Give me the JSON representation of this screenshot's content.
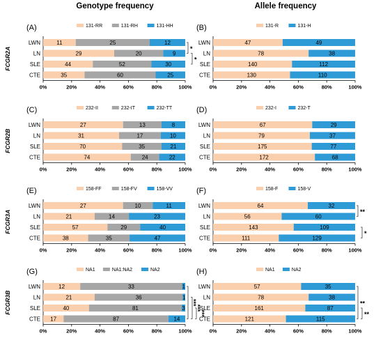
{
  "headers": {
    "genotype": "Genotype frequency",
    "allele": "Allele frequency"
  },
  "genes": [
    "FCGR2A",
    "FCGR2B",
    "FCGR3A",
    "FCGR3B"
  ],
  "colors": {
    "c1": "#f9cfae",
    "c2": "#a6a6a6",
    "c3": "#2e9ad6",
    "sig_line": "#404040",
    "axis": "#000000"
  },
  "chart_data": [
    {
      "type": "bar",
      "panel": "(A)",
      "orientation": "horizontal",
      "stacked": "percent",
      "categories": [
        "LWN",
        "LN",
        "SLE",
        "CTE"
      ],
      "series": [
        {
          "name": "131-RR",
          "values": [
            11,
            29,
            44,
            35
          ]
        },
        {
          "name": "131-RH",
          "values": [
            25,
            20,
            52,
            60
          ]
        },
        {
          "name": "131-HH",
          "values": [
            12,
            9,
            30,
            25
          ]
        }
      ],
      "xticks": [
        "0%",
        "20%",
        "40%",
        "60%",
        "80%",
        "100%"
      ],
      "significance": [
        {
          "rows": [
            0,
            1
          ],
          "label": "*"
        },
        {
          "rows": [
            1,
            2
          ],
          "label": "*"
        }
      ]
    },
    {
      "type": "bar",
      "panel": "(B)",
      "orientation": "horizontal",
      "stacked": "percent",
      "categories": [
        "LWN",
        "LN",
        "SLE",
        "CTE"
      ],
      "series": [
        {
          "name": "131-R",
          "values": [
            47,
            78,
            140,
            130
          ]
        },
        {
          "name": "131-H",
          "values": [
            49,
            38,
            112,
            110
          ]
        }
      ],
      "xticks": [
        "0%",
        "20%",
        "40%",
        "60%",
        "80%",
        "100%"
      ],
      "significance": []
    },
    {
      "type": "bar",
      "panel": "(C)",
      "orientation": "horizontal",
      "stacked": "percent",
      "categories": [
        "LWN",
        "LN",
        "SLE",
        "CTE"
      ],
      "series": [
        {
          "name": "232-II",
          "values": [
            27,
            31,
            70,
            74
          ]
        },
        {
          "name": "232-IT",
          "values": [
            13,
            17,
            35,
            24
          ]
        },
        {
          "name": "232-TT",
          "values": [
            8,
            10,
            21,
            22
          ]
        }
      ],
      "xticks": [
        "0%",
        "20%",
        "40%",
        "60%",
        "80%",
        "100%"
      ],
      "significance": []
    },
    {
      "type": "bar",
      "panel": "(D)",
      "orientation": "horizontal",
      "stacked": "percent",
      "categories": [
        "LWN",
        "LN",
        "SLE",
        "CTE"
      ],
      "series": [
        {
          "name": "232-I",
          "values": [
            67,
            79,
            175,
            172
          ]
        },
        {
          "name": "232-T",
          "values": [
            29,
            37,
            77,
            68
          ]
        }
      ],
      "xticks": [
        "0%",
        "20%",
        "40%",
        "60%",
        "80%",
        "100%"
      ],
      "significance": []
    },
    {
      "type": "bar",
      "panel": "(E)",
      "orientation": "horizontal",
      "stacked": "percent",
      "categories": [
        "LWN",
        "LN",
        "SLE",
        "CTE"
      ],
      "series": [
        {
          "name": "158-FF",
          "values": [
            27,
            21,
            57,
            38
          ]
        },
        {
          "name": "158-FV",
          "values": [
            10,
            14,
            29,
            35
          ]
        },
        {
          "name": "158-VV",
          "values": [
            11,
            23,
            40,
            47
          ]
        }
      ],
      "xticks": [
        "0%",
        "20%",
        "40%",
        "60%",
        "80%",
        "100%"
      ],
      "significance": []
    },
    {
      "type": "bar",
      "panel": "(F)",
      "orientation": "horizontal",
      "stacked": "percent",
      "categories": [
        "LWN",
        "LN",
        "SLE",
        "CTE"
      ],
      "series": [
        {
          "name": "158-F",
          "values": [
            64,
            56,
            143,
            111
          ]
        },
        {
          "name": "158-V",
          "values": [
            32,
            60,
            109,
            129
          ]
        }
      ],
      "xticks": [
        "0%",
        "20%",
        "40%",
        "60%",
        "80%",
        "100%"
      ],
      "significance": [
        {
          "rows": [
            0,
            1
          ],
          "label": "**"
        },
        {
          "rows": [
            2,
            3
          ],
          "label": "*"
        }
      ]
    },
    {
      "type": "bar",
      "panel": "(G)",
      "orientation": "horizontal",
      "stacked": "percent",
      "categories": [
        "LWN",
        "LN",
        "SLE",
        "CTE"
      ],
      "series": [
        {
          "name": "NA1",
          "values": [
            12,
            21,
            40,
            17
          ]
        },
        {
          "name": "NA1:NA2",
          "values": [
            33,
            36,
            81,
            87
          ]
        },
        {
          "name": "NA2",
          "values": [
            1,
            1,
            3,
            14
          ]
        }
      ],
      "xticks": [
        "0%",
        "20%",
        "40%",
        "60%",
        "80%",
        "100%"
      ],
      "significance": [
        {
          "rows": [
            0,
            3
          ],
          "label": "***"
        },
        {
          "rows": [
            1,
            3
          ],
          "label": "***"
        },
        {
          "rows": [
            2,
            3
          ],
          "label": "***"
        }
      ]
    },
    {
      "type": "bar",
      "panel": "(H)",
      "orientation": "horizontal",
      "stacked": "percent",
      "categories": [
        "LWN",
        "LN",
        "SLE",
        "CTE"
      ],
      "series": [
        {
          "name": "NA1",
          "values": [
            57,
            78,
            161,
            121
          ]
        },
        {
          "name": "NA2",
          "values": [
            35,
            38,
            87,
            115
          ]
        }
      ],
      "xticks": [
        "0%",
        "20%",
        "40%",
        "60%",
        "80%",
        "100%"
      ],
      "significance": [
        {
          "rows": [
            0,
            3
          ],
          "label": "**"
        },
        {
          "rows": [
            2,
            3
          ],
          "label": "**"
        }
      ]
    }
  ]
}
